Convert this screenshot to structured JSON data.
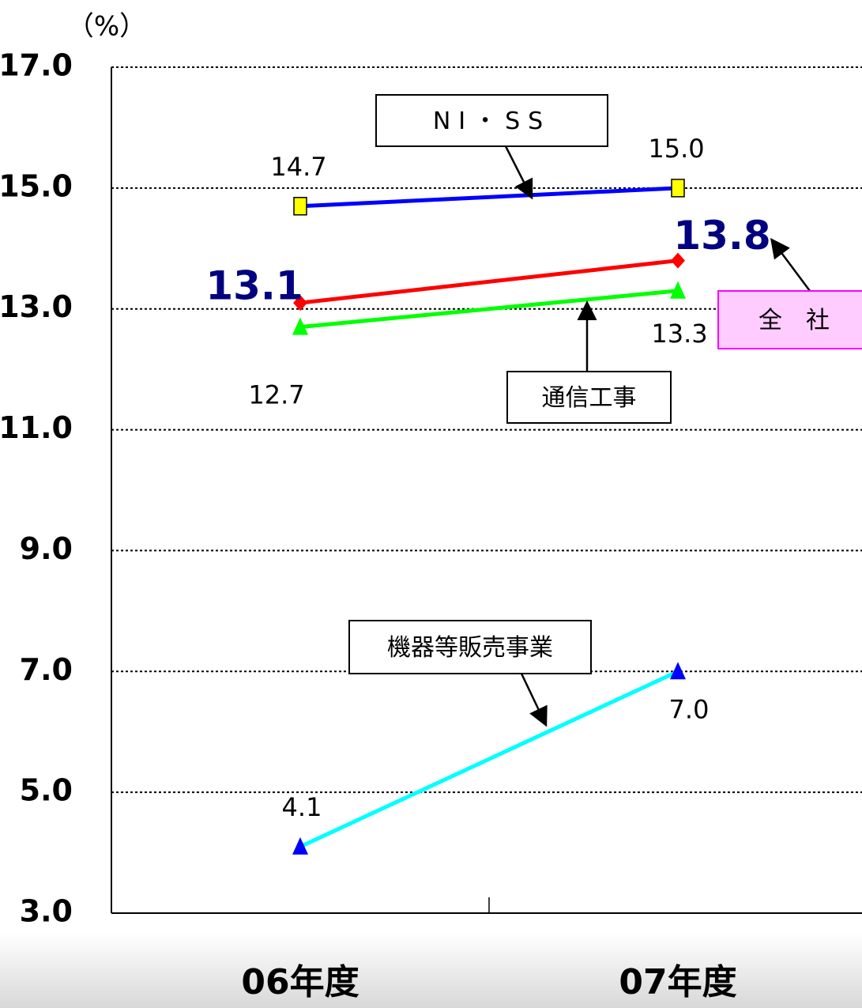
{
  "chart_data": {
    "type": "line",
    "y_axis_label": "（%）",
    "categories": [
      "06年度",
      "07年度"
    ],
    "series": [
      {
        "name": "NI・SS",
        "color": "#0000ff",
        "marker": "square",
        "marker_color": "#ffff00",
        "values": [
          14.7,
          15.0
        ],
        "value_labels": [
          "14.7",
          "15.0"
        ]
      },
      {
        "name": "全　社",
        "color": "#ff0000",
        "marker": "diamond",
        "marker_color": "#ff0000",
        "values": [
          13.1,
          13.8
        ],
        "value_labels": [
          "13.1",
          "13.8"
        ]
      },
      {
        "name": "通信工事",
        "color": "#00ff00",
        "marker": "triangle",
        "marker_color": "#00ff00",
        "values": [
          12.7,
          13.3
        ],
        "value_labels": [
          "12.7",
          "13.3"
        ]
      },
      {
        "name": "機器等販売事業",
        "color": "#00ffff",
        "marker": "triangle",
        "marker_color": "#0000ff",
        "values": [
          4.1,
          7.0
        ],
        "value_labels": [
          "4.1",
          "7.0"
        ]
      }
    ],
    "ylim": [
      3,
      17
    ],
    "yticks": [
      {
        "value": 3,
        "label": "3.0"
      },
      {
        "value": 5,
        "label": "5.0"
      },
      {
        "value": 7,
        "label": "7.0"
      },
      {
        "value": 9,
        "label": "9.0"
      },
      {
        "value": 11,
        "label": "11.0"
      },
      {
        "value": 13,
        "label": "13.0"
      },
      {
        "value": 15,
        "label": "15.0"
      },
      {
        "value": 17,
        "label": "17.0"
      }
    ],
    "grid": true
  }
}
